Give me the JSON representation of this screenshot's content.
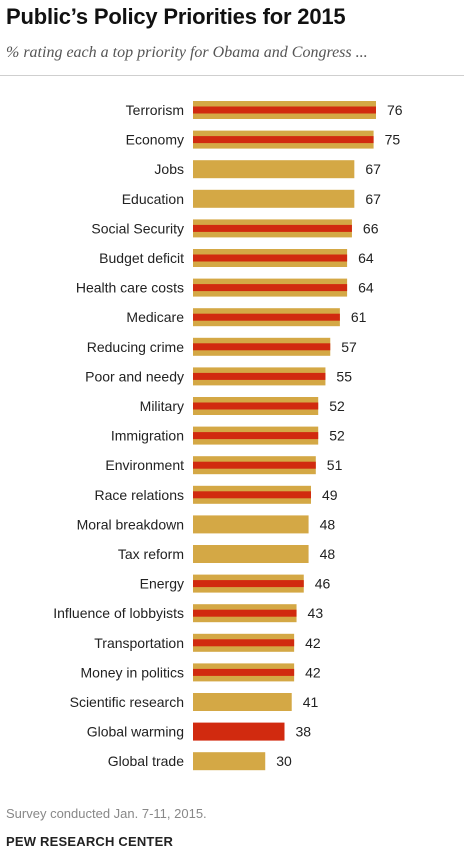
{
  "header": {
    "title": "Public’s Policy Priorities for 2015",
    "subtitle": "% rating each a top priority for Obama and Congress ..."
  },
  "footer": {
    "note": "Survey conducted Jan. 7-11, 2015.",
    "source": "PEW RESEARCH CENTER"
  },
  "colors": {
    "gold": "#d4a845",
    "red": "#d12a0f",
    "text": "#222222"
  },
  "chart_data": {
    "type": "bar",
    "orientation": "horizontal",
    "title": "Public’s Policy Priorities for 2015",
    "subtitle": "% rating each a top priority for Obama and Congress ...",
    "xlim": [
      0,
      100
    ],
    "grid": false,
    "data_labels": true,
    "categories": [
      "Terrorism",
      "Economy",
      "Jobs",
      "Education",
      "Social Security",
      "Budget deficit",
      "Health care costs",
      "Medicare",
      "Reducing crime",
      "Poor and needy",
      "Military",
      "Immigration",
      "Environment",
      "Race relations",
      "Moral breakdown",
      "Tax reform",
      "Energy",
      "Influence of lobbyists",
      "Transportation",
      "Money in politics",
      "Scientific research",
      "Global warming",
      "Global trade"
    ],
    "values": [
      76,
      75,
      67,
      67,
      66,
      64,
      64,
      61,
      57,
      55,
      52,
      52,
      51,
      49,
      48,
      48,
      46,
      43,
      42,
      42,
      41,
      38,
      30
    ],
    "bar_style": [
      "gold-red-stripe",
      "gold-red-stripe",
      "gold",
      "gold",
      "gold-red-stripe",
      "gold-red-stripe",
      "gold-red-stripe",
      "gold-red-stripe",
      "gold-red-stripe",
      "gold-red-stripe",
      "gold-red-stripe",
      "gold-red-stripe",
      "gold-red-stripe",
      "gold-red-stripe",
      "gold",
      "gold",
      "gold-red-stripe",
      "gold-red-stripe",
      "gold-red-stripe",
      "gold-red-stripe",
      "gold",
      "red",
      "gold"
    ]
  }
}
